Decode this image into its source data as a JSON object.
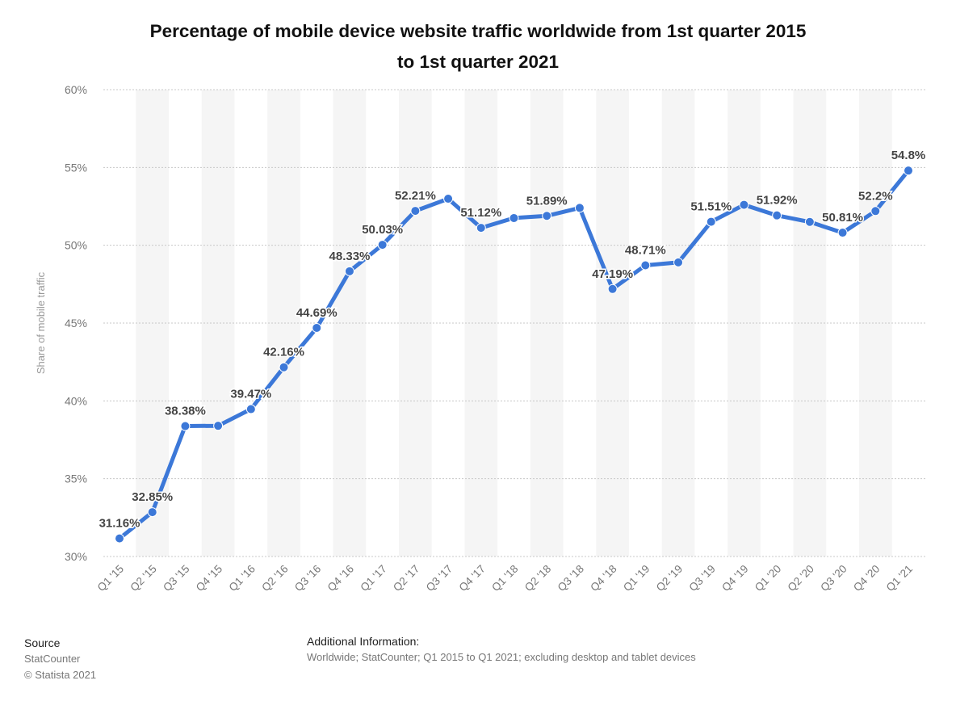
{
  "title": {
    "line1": "Percentage of mobile device website traffic worldwide from 1st quarter 2015",
    "line2": "to 1st quarter 2021"
  },
  "colors": {
    "line": "#3c78d8",
    "band": "#f5f5f5",
    "grid": "#c8c8c8",
    "axis_text": "#777777",
    "label_text": "#444444"
  },
  "chart_data": {
    "type": "line",
    "title": "Percentage of mobile device website traffic worldwide from 1st quarter 2015 to 1st quarter 2021",
    "xlabel": "",
    "ylabel": "Share of mobile traffic",
    "ylim": [
      30,
      60
    ],
    "yticks": [
      30,
      35,
      40,
      45,
      50,
      55,
      60
    ],
    "ytick_labels": [
      "30%",
      "35%",
      "40%",
      "45%",
      "50%",
      "55%",
      "60%"
    ],
    "grid": true,
    "categories": [
      "Q1 '15",
      "Q2 '15",
      "Q3 '15",
      "Q4 '15",
      "Q1 '16",
      "Q2 '16",
      "Q3 '16",
      "Q4 '16",
      "Q1 '17",
      "Q2 '17",
      "Q3 '17",
      "Q4 '17",
      "Q1 '18",
      "Q2 '18",
      "Q3 '18",
      "Q4 '18",
      "Q1 '19",
      "Q2 '19",
      "Q3 '19",
      "Q4 '19",
      "Q1 '20",
      "Q2 '20",
      "Q3 '20",
      "Q4 '20",
      "Q1 '21"
    ],
    "values": [
      31.16,
      32.85,
      38.38,
      38.4,
      39.47,
      42.16,
      44.69,
      48.33,
      50.03,
      52.21,
      52.99,
      51.12,
      51.75,
      51.89,
      52.4,
      47.19,
      48.71,
      48.9,
      51.51,
      52.6,
      51.92,
      51.5,
      50.81,
      52.2,
      54.8
    ],
    "data_labels": [
      "31.16%",
      "32.85%",
      "38.38%",
      "",
      "39.47%",
      "42.16%",
      "44.69%",
      "48.33%",
      "50.03%",
      "52.21%",
      "",
      "51.12%",
      "",
      "51.89%",
      "",
      "47.19%",
      "48.71%",
      "",
      "51.51%",
      "",
      "51.92%",
      "",
      "50.81%",
      "52.2%",
      "54.8%"
    ]
  },
  "footer": {
    "source_heading": "Source",
    "source_name": "StatCounter",
    "copyright": "© Statista 2021",
    "info_heading": "Additional Information:",
    "info_text": "Worldwide; StatCounter; Q1 2015 to Q1 2021; excluding desktop and tablet devices"
  }
}
